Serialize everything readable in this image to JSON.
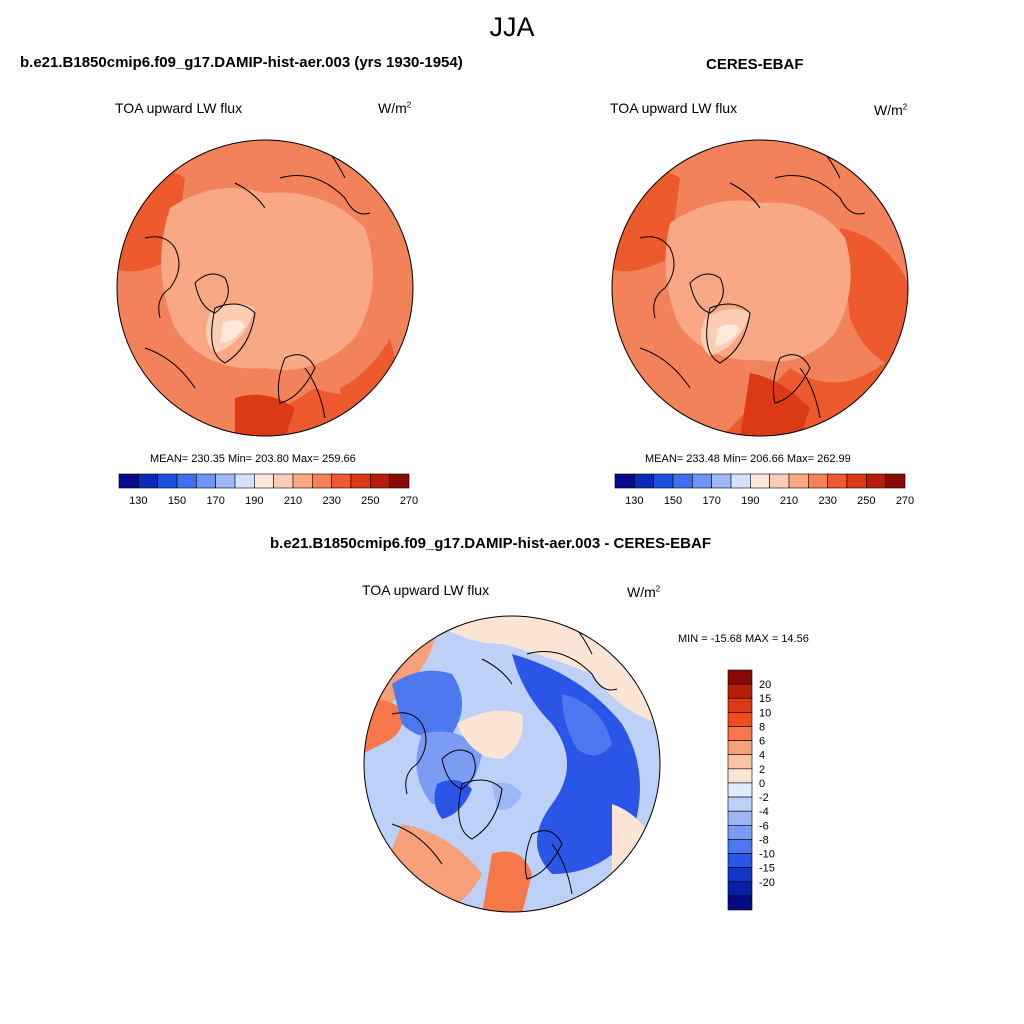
{
  "season": "JJA",
  "panels": {
    "model": {
      "title": "b.e21.B1850cmip6.f09_g17.DAMIP-hist-aer.003 (yrs 1930-1954)",
      "variable": "TOA upward LW flux",
      "units": "W/m",
      "units_sup": "2",
      "stats": "MEAN= 230.35  Min= 203.80  Max= 259.66"
    },
    "obs": {
      "title": "CERES-EBAF",
      "variable": "TOA upward LW flux",
      "units": "W/m",
      "units_sup": "2",
      "stats": "MEAN= 233.48  Min= 206.66  Max= 262.99"
    },
    "diff": {
      "title": "b.e21.B1850cmip6.f09_g17.DAMIP-hist-aer.003 - CERES-EBAF",
      "variable": "TOA upward LW flux",
      "units": "W/m",
      "units_sup": "2",
      "stats": "MIN = -15.68 MAX =  14.56"
    }
  },
  "colorbar_abs": {
    "colors": [
      "#08088a",
      "#0a2bb5",
      "#1f4fe0",
      "#3f6ff0",
      "#6f95f5",
      "#9fb9f8",
      "#d3e1fb",
      "#fde8dc",
      "#fbcdb3",
      "#f8a884",
      "#f2825a",
      "#ec5a2e",
      "#dc3a16",
      "#b51f0a",
      "#8a0a05"
    ],
    "ticks": [
      "130",
      "150",
      "170",
      "190",
      "210",
      "230",
      "250",
      "270"
    ]
  },
  "colorbar_diff": {
    "colors": [
      "#8a0a05",
      "#b51f0a",
      "#dc3a16",
      "#f04b1f",
      "#f5774a",
      "#f8a07a",
      "#fbc4a6",
      "#fde5d6",
      "#e0ebfb",
      "#bdd0f8",
      "#9cb6f6",
      "#7c9cf4",
      "#4e78f0",
      "#2b55e6",
      "#1235cc",
      "#0a1fa8",
      "#050a80"
    ],
    "ticks": [
      "20",
      "15",
      "10",
      "8",
      "6",
      "4",
      "2",
      "0",
      "-2",
      "-4",
      "-6",
      "-8",
      "-10",
      "-15",
      "-20"
    ]
  }
}
